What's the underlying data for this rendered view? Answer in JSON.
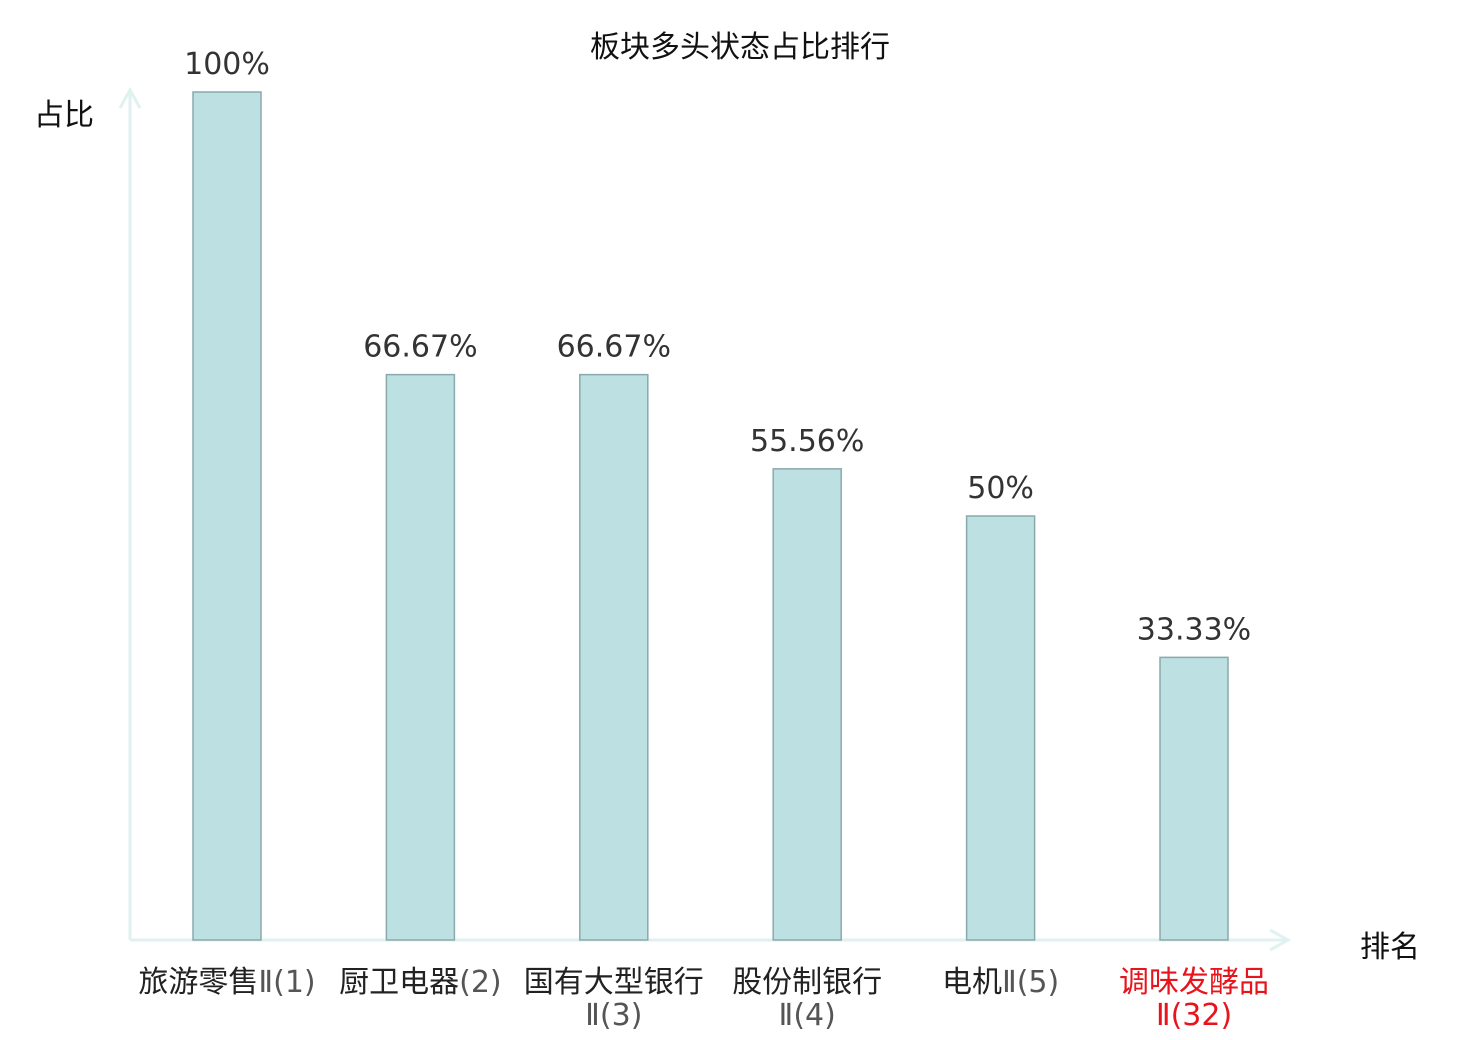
{
  "chart_data": {
    "type": "bar",
    "title": "板块多头状态占比排行",
    "ylabel": "占比",
    "xlabel": "排名",
    "ylim": [
      0,
      100
    ],
    "grid": false,
    "categories": [
      {
        "name": "旅游零售",
        "suffix": "Ⅱ(1)",
        "highlight": false
      },
      {
        "name": "厨卫电器",
        "suffix": "(2)",
        "highlight": false
      },
      {
        "name": "国有大型银行",
        "suffix": "Ⅱ(3)",
        "highlight": false
      },
      {
        "name": "股份制银行",
        "suffix": "Ⅱ(4)",
        "highlight": false
      },
      {
        "name": "电机",
        "suffix": "Ⅱ(5)",
        "highlight": false
      },
      {
        "name": "调味发酵品",
        "suffix": "Ⅱ(32)",
        "highlight": true
      }
    ],
    "values": [
      100,
      66.67,
      66.67,
      55.56,
      50,
      33.33
    ],
    "value_labels": [
      "100%",
      "66.67%",
      "66.67%",
      "55.56%",
      "50%",
      "33.33%"
    ]
  },
  "colors": {
    "bar_fill": "#bde0e3",
    "bar_stroke": "#8aa9ad",
    "axis": "#e0f2ef",
    "highlight_text": "#e8141c"
  }
}
